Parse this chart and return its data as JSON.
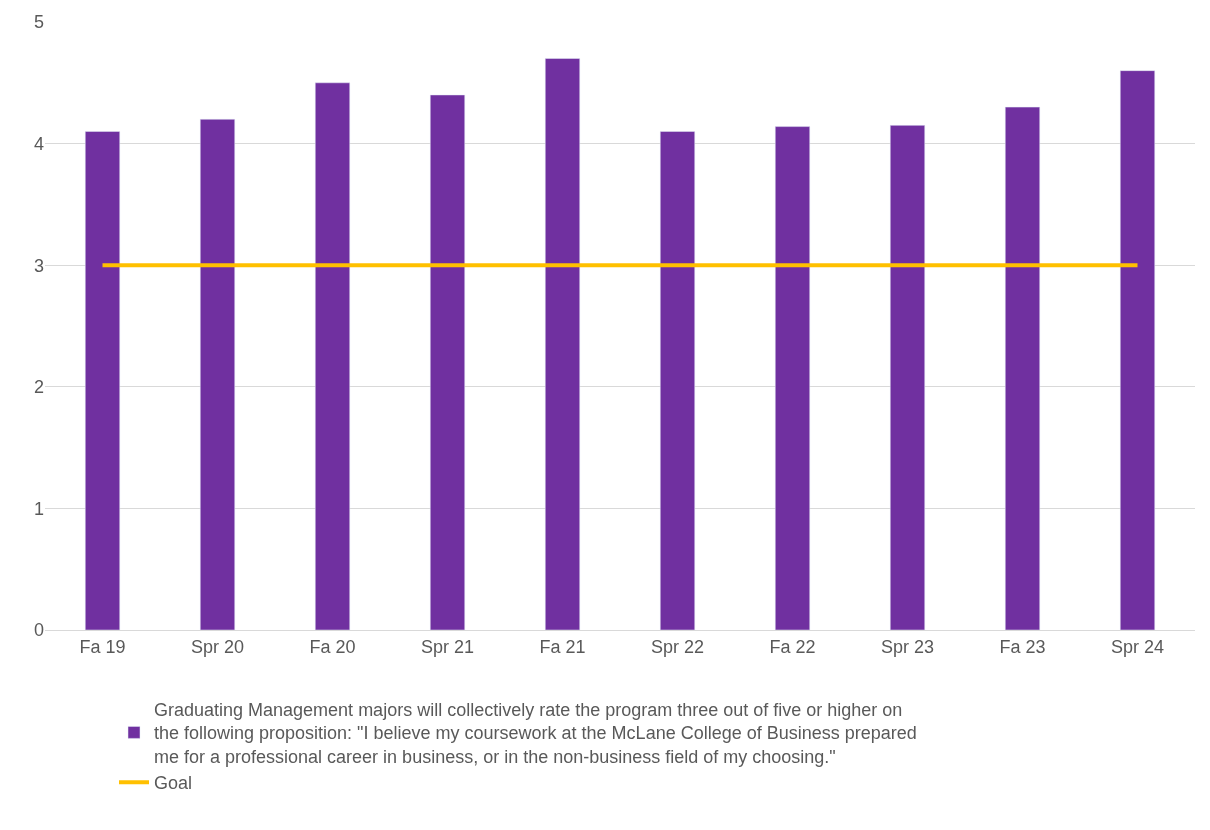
{
  "chart_data": {
    "type": "bar",
    "categories": [
      "Fa 19",
      "Spr 20",
      "Fa 20",
      "Spr 21",
      "Fa 21",
      "Spr 22",
      "Fa 22",
      "Spr 23",
      "Fa 23",
      "Spr 24"
    ],
    "series": [
      {
        "name": "Graduating Management majors will collectively rate the program three out of five or higher on the following proposition: \"I believe my coursework at the McLane College of Business prepared me for a professional career in business, or in the non-business field of my choosing.\"",
        "color": "#7030a0",
        "values": [
          4.1,
          4.2,
          4.5,
          4.4,
          4.7,
          4.1,
          4.14,
          4.15,
          4.3,
          4.6
        ]
      },
      {
        "name": "Goal",
        "type": "line",
        "color": "#ffc000",
        "values": [
          3,
          3,
          3,
          3,
          3,
          3,
          3,
          3,
          3,
          3
        ]
      }
    ],
    "ylim": [
      0,
      5
    ],
    "yticks": [
      0,
      1,
      2,
      3,
      4,
      5
    ],
    "grid": "y",
    "legend": "bottom",
    "marker": "none",
    "line_style": "solid"
  }
}
